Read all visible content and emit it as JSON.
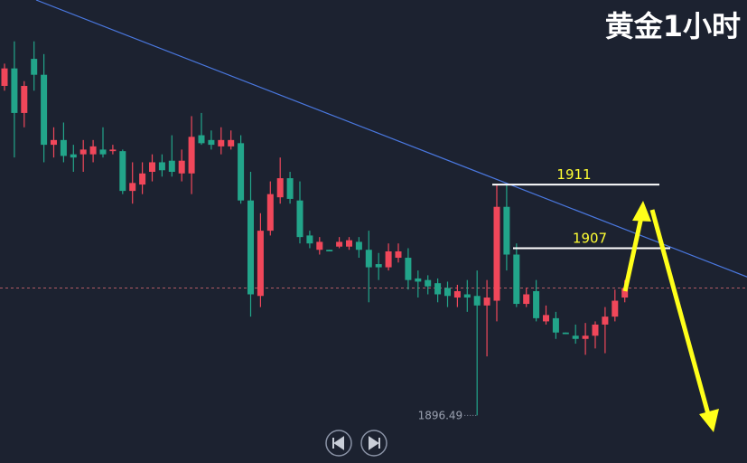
{
  "chart_data": {
    "type": "candlestick",
    "title": "黄金1小时",
    "up_color": "#f0475a",
    "down_color": "#22a58a",
    "ylim": [
      1893.5,
      1922.6
    ],
    "open": [
      1917.2,
      1918.3,
      1915.5,
      1918.9,
      1917.9,
      1913.5,
      1913.8,
      1912.9,
      1912.9,
      1912.9,
      1913.2,
      1913.1,
      1913.1,
      1910.6,
      1911.0,
      1911.8,
      1912.4,
      1912.5,
      1911.7,
      1911.7,
      1914.1,
      1913.8,
      1913.4,
      1913.4,
      1913.6,
      1910.0,
      1904.0,
      1908.1,
      1910.2,
      1911.4,
      1910.0,
      1907.8,
      1906.9,
      1906.9,
      1907.1,
      1907.1,
      1907.4,
      1906.9,
      1906.0,
      1905.8,
      1906.4,
      1906.4,
      1905.1,
      1905.0,
      1904.8,
      1904.5,
      1903.9,
      1904.1,
      1904.0,
      1903.4,
      1903.7,
      1909.6,
      1906.6,
      1903.5,
      1904.3,
      1902.4,
      1902.6,
      1901.7,
      1901.5,
      1901.3,
      1901.5,
      1902.2,
      1902.7,
      1903.9
    ],
    "high": [
      1918.6,
      1920.0,
      1917.5,
      1920.0,
      1919.2,
      1914.6,
      1914.9,
      1913.5,
      1913.8,
      1913.8,
      1914.6,
      1913.5,
      1913.2,
      1912.4,
      1912.4,
      1912.9,
      1912.9,
      1914.1,
      1913.2,
      1915.3,
      1915.5,
      1914.4,
      1914.6,
      1914.4,
      1914.1,
      1911.8,
      1909.2,
      1911.2,
      1912.7,
      1911.8,
      1911.2,
      1908.1,
      1907.7,
      1906.9,
      1907.7,
      1907.7,
      1907.7,
      1908.1,
      1906.7,
      1907.3,
      1907.3,
      1907.0,
      1905.6,
      1905.3,
      1905.1,
      1904.9,
      1904.7,
      1905.0,
      1905.6,
      1905.0,
      1911.0,
      1911.0,
      1907.3,
      1904.5,
      1905.0,
      1903.4,
      1903.0,
      1901.7,
      1902.2,
      1902.3,
      1902.4,
      1903.3,
      1904.4,
      1905.0
    ],
    "low": [
      1916.9,
      1912.7,
      1914.6,
      1916.9,
      1912.4,
      1912.7,
      1912.4,
      1911.8,
      1911.8,
      1912.4,
      1912.7,
      1912.9,
      1910.4,
      1909.8,
      1910.4,
      1911.2,
      1911.5,
      1911.5,
      1911.2,
      1910.4,
      1913.5,
      1913.2,
      1912.9,
      1913.2,
      1909.8,
      1902.7,
      1903.3,
      1907.8,
      1909.8,
      1909.8,
      1907.3,
      1907.0,
      1906.6,
      1906.8,
      1907.0,
      1906.9,
      1906.4,
      1903.6,
      1905.0,
      1905.6,
      1906.1,
      1904.4,
      1903.9,
      1904.1,
      1903.6,
      1903.3,
      1903.3,
      1903.0,
      1896.49,
      1900.2,
      1902.4,
      1905.6,
      1903.3,
      1903.3,
      1902.4,
      1902.2,
      1901.3,
      1901.6,
      1901.0,
      1900.3,
      1900.7,
      1900.4,
      1902.4,
      1903.6
    ],
    "close": [
      1918.3,
      1915.5,
      1917.2,
      1917.9,
      1913.5,
      1913.8,
      1912.8,
      1912.7,
      1913.2,
      1913.4,
      1912.9,
      1913.2,
      1910.6,
      1911.1,
      1911.7,
      1912.4,
      1911.9,
      1911.8,
      1912.5,
      1914.0,
      1913.6,
      1913.5,
      1913.8,
      1913.8,
      1910.0,
      1904.1,
      1908.1,
      1910.4,
      1911.4,
      1910.1,
      1907.7,
      1907.3,
      1907.4,
      1906.8,
      1907.4,
      1907.5,
      1906.9,
      1905.8,
      1905.8,
      1906.8,
      1906.8,
      1905.0,
      1904.9,
      1904.6,
      1904.1,
      1904.0,
      1904.3,
      1903.9,
      1903.4,
      1903.9,
      1909.6,
      1906.6,
      1903.5,
      1904.1,
      1902.6,
      1902.8,
      1901.7,
      1901.6,
      1901.3,
      1901.5,
      1902.2,
      1902.7,
      1903.7,
      1904.5
    ],
    "levels": [
      1911,
      1907
    ],
    "trendline": [
      1922.6,
      1905.2
    ]
  }
}
